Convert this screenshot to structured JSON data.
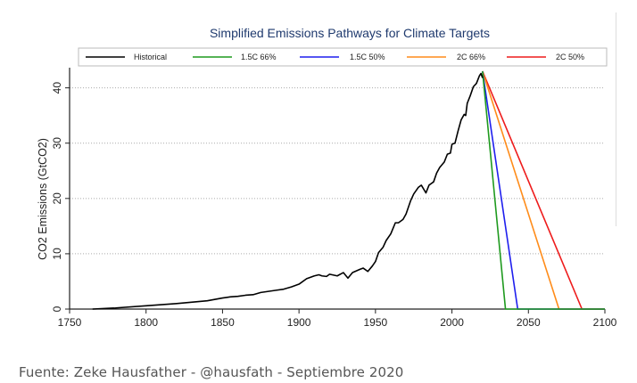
{
  "chart_data": {
    "type": "line",
    "title": "Simplified Emissions Pathways for Climate Targets",
    "xlabel": "",
    "ylabel": "CO2 Emissions (GtCO2)",
    "xlim": [
      1750,
      2100
    ],
    "ylim": [
      0,
      43
    ],
    "x_ticks": [
      1750,
      1800,
      1850,
      1900,
      1950,
      2000,
      2050,
      2100
    ],
    "y_ticks": [
      0,
      10,
      20,
      30,
      40
    ],
    "grid": "horizontal dotted",
    "legend_position": "top",
    "series": [
      {
        "name": "Historical",
        "color": "#000000",
        "points": [
          [
            1765,
            0.0
          ],
          [
            1780,
            0.2
          ],
          [
            1800,
            0.6
          ],
          [
            1820,
            1.0
          ],
          [
            1840,
            1.5
          ],
          [
            1850,
            2.0
          ],
          [
            1855,
            2.2
          ],
          [
            1860,
            2.3
          ],
          [
            1865,
            2.5
          ],
          [
            1870,
            2.6
          ],
          [
            1875,
            3.0
          ],
          [
            1880,
            3.2
          ],
          [
            1885,
            3.4
          ],
          [
            1890,
            3.6
          ],
          [
            1895,
            4.0
          ],
          [
            1900,
            4.5
          ],
          [
            1905,
            5.5
          ],
          [
            1910,
            6.0
          ],
          [
            1913,
            6.2
          ],
          [
            1915,
            6.0
          ],
          [
            1918,
            5.9
          ],
          [
            1920,
            6.3
          ],
          [
            1925,
            6.0
          ],
          [
            1929,
            6.6
          ],
          [
            1932,
            5.6
          ],
          [
            1935,
            6.6
          ],
          [
            1940,
            7.2
          ],
          [
            1942,
            7.4
          ],
          [
            1945,
            6.8
          ],
          [
            1948,
            7.8
          ],
          [
            1950,
            8.6
          ],
          [
            1952,
            10.2
          ],
          [
            1955,
            11.2
          ],
          [
            1957,
            12.4
          ],
          [
            1960,
            13.6
          ],
          [
            1963,
            15.6
          ],
          [
            1965,
            15.6
          ],
          [
            1968,
            16.2
          ],
          [
            1970,
            17.2
          ],
          [
            1973,
            19.6
          ],
          [
            1975,
            20.8
          ],
          [
            1978,
            22.0
          ],
          [
            1980,
            22.4
          ],
          [
            1983,
            21.0
          ],
          [
            1985,
            22.4
          ],
          [
            1988,
            23.0
          ],
          [
            1990,
            24.6
          ],
          [
            1992,
            25.6
          ],
          [
            1995,
            26.6
          ],
          [
            1997,
            28.0
          ],
          [
            1999,
            28.2
          ],
          [
            2000,
            29.8
          ],
          [
            2002,
            30.0
          ],
          [
            2004,
            32.2
          ],
          [
            2006,
            34.2
          ],
          [
            2008,
            35.2
          ],
          [
            2009,
            35.0
          ],
          [
            2010,
            37.2
          ],
          [
            2012,
            38.6
          ],
          [
            2014,
            40.2
          ],
          [
            2016,
            40.8
          ],
          [
            2018,
            42.2
          ],
          [
            2019,
            42.6
          ],
          [
            2020,
            41.8
          ]
        ]
      },
      {
        "name": "1.5C 66%",
        "color": "#1f9a1f",
        "points": [
          [
            2020,
            43
          ],
          [
            2035,
            0
          ],
          [
            2100,
            0
          ]
        ]
      },
      {
        "name": "1.5C 50%",
        "color": "#1f1fee",
        "points": [
          [
            2020,
            43
          ],
          [
            2043,
            0
          ],
          [
            2100,
            0
          ]
        ]
      },
      {
        "name": "2C 66%",
        "color": "#ff8c1a",
        "points": [
          [
            2020,
            43
          ],
          [
            2070,
            0
          ],
          [
            2100,
            0
          ]
        ]
      },
      {
        "name": "2C 50%",
        "color": "#ee1c1c",
        "points": [
          [
            2020,
            43
          ],
          [
            2085,
            0
          ],
          [
            2100,
            0
          ]
        ]
      }
    ]
  },
  "caption": "Fuente: Zeke Hausfather - @hausfath - Septiembre 2020"
}
